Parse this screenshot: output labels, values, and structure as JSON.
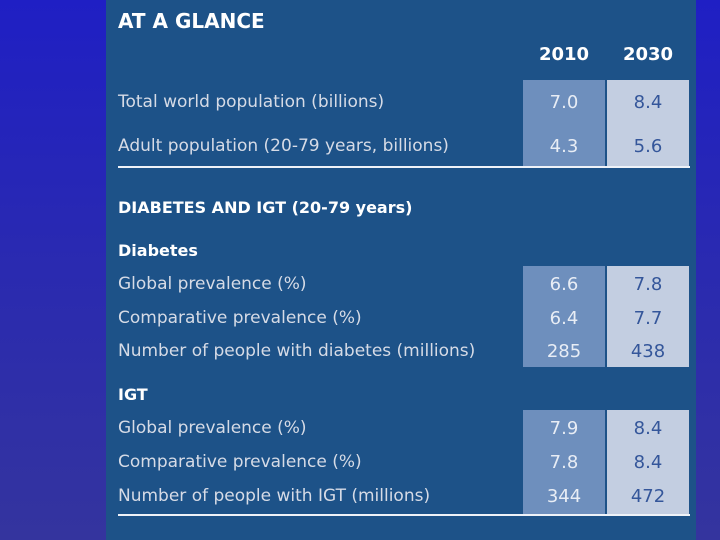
{
  "title": "AT A GLANCE",
  "years": [
    "2010",
    "2030"
  ],
  "population": {
    "rows": [
      {
        "label": "Total world population (billions)",
        "v2010": "7.0",
        "v2030": "8.4"
      },
      {
        "label": "Adult population (20-79 years, billions)",
        "v2010": "4.3",
        "v2030": "5.6"
      }
    ]
  },
  "section_title": "DIABETES AND IGT (20-79 years)",
  "diabetes": {
    "title": "Diabetes",
    "rows": [
      {
        "label": "Global prevalence (%)",
        "v2010": "6.6",
        "v2030": "7.8"
      },
      {
        "label": "Comparative prevalence (%)",
        "v2010": "6.4",
        "v2030": "7.7"
      },
      {
        "label": "Number of people with diabetes (millions)",
        "v2010": "285",
        "v2030": "438"
      }
    ]
  },
  "igt": {
    "title": "IGT",
    "rows": [
      {
        "label": "Global prevalence (%)",
        "v2010": "7.9",
        "v2030": "8.4"
      },
      {
        "label": "Comparative prevalence (%)",
        "v2010": "7.8",
        "v2030": "8.4"
      },
      {
        "label": "Number of people with IGT (millions)",
        "v2010": "344",
        "v2030": "472"
      }
    ]
  },
  "colors": {
    "background": "#2a2ab0",
    "panel": "#1d5288",
    "col_2010": "#6e8fbd",
    "col_2030": "#c3cee1"
  }
}
